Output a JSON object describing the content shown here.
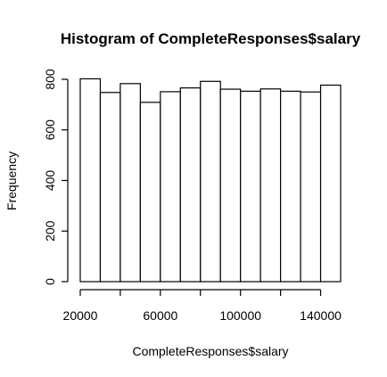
{
  "chart_data": {
    "type": "bar",
    "title": "Histogram of CompleteResponses$salary",
    "xlabel": "CompleteResponses$salary",
    "ylabel": "Frequency",
    "bin_edges": [
      20000,
      30000,
      40000,
      50000,
      60000,
      70000,
      80000,
      90000,
      100000,
      110000,
      120000,
      130000,
      140000,
      150000
    ],
    "values": [
      802,
      748,
      783,
      709,
      751,
      766,
      792,
      761,
      753,
      762,
      753,
      750,
      777
    ],
    "xlim": [
      20000,
      150000
    ],
    "ylim": [
      0,
      800
    ],
    "x_ticks": [
      20000,
      40000,
      60000,
      80000,
      100000,
      120000,
      140000
    ],
    "x_tick_labels": [
      "20000",
      "",
      "60000",
      "",
      "100000",
      "",
      "140000"
    ],
    "y_ticks": [
      0,
      200,
      400,
      600,
      800
    ],
    "y_tick_labels": [
      "0",
      "200",
      "400",
      "600",
      "800"
    ],
    "grid": false,
    "legend": "none",
    "colors": {
      "bar_fill": "#ffffff",
      "bar_stroke": "#000000"
    }
  }
}
